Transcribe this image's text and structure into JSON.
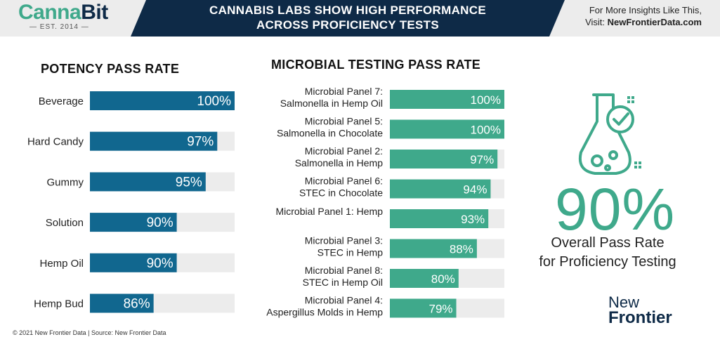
{
  "header": {
    "logo_text": "Canna",
    "logo_text_b": "Bit",
    "logo_est": "— EST. 2014 —",
    "title_line1": "CANNABIS LABS SHOW HIGH PERFORMANCE",
    "title_line2": "ACROSS PROFICIENCY TESTS",
    "insights_line1": "For More Insights Like This,",
    "insights_prefix": "Visit: ",
    "insights_url": "NewFrontierData.com"
  },
  "colors": {
    "potency": "#11678f",
    "microbial": "#3fa98b",
    "track": "#ececec",
    "navy": "#0e2a47"
  },
  "chart_data": [
    {
      "type": "bar",
      "orientation": "horizontal",
      "title": "POTENCY PASS RATE",
      "categories": [
        "Beverage",
        "Hard Candy",
        "Gummy",
        "Solution",
        "Hemp Oil",
        "Hemp Bud"
      ],
      "values": [
        100,
        97,
        95,
        90,
        90,
        86
      ],
      "value_labels": [
        "100%",
        "97%",
        "95%",
        "90%",
        "90%",
        "86%"
      ],
      "xlim": [
        75,
        100
      ]
    },
    {
      "type": "bar",
      "orientation": "horizontal",
      "title": "MICROBIAL TESTING PASS RATE",
      "categories": [
        [
          "Microbial Panel 7:",
          "Salmonella in Hemp Oil"
        ],
        [
          "Microbial Panel 5:",
          "Salmonella in Chocolate"
        ],
        [
          "Microbial Panel 2:",
          "Salmonella in Hemp"
        ],
        [
          "Microbial Panel 6:",
          "STEC in Chocolate"
        ],
        [
          "Microbial Panel 1: Hemp"
        ],
        [
          "Microbial Panel 3:",
          "STEC in Hemp"
        ],
        [
          "Microbial Panel 8:",
          "STEC in Hemp Oil"
        ],
        [
          "Microbial Panel 4:",
          "Aspergillus Molds in Hemp"
        ]
      ],
      "values": [
        100,
        100,
        97,
        94,
        93,
        88,
        80,
        79
      ],
      "value_labels": [
        "100%",
        "100%",
        "97%",
        "94%",
        "93%",
        "88%",
        "80%",
        "79%"
      ],
      "xlim": [
        50,
        100
      ]
    }
  ],
  "summary": {
    "big_value": "90%",
    "line1": "Overall Pass Rate",
    "line2": "for Proficiency Testing"
  },
  "footer": "© 2021 New Frontier Data | Source: New Frontier Data",
  "brand": {
    "line1": "New",
    "line2": "Frontier"
  }
}
